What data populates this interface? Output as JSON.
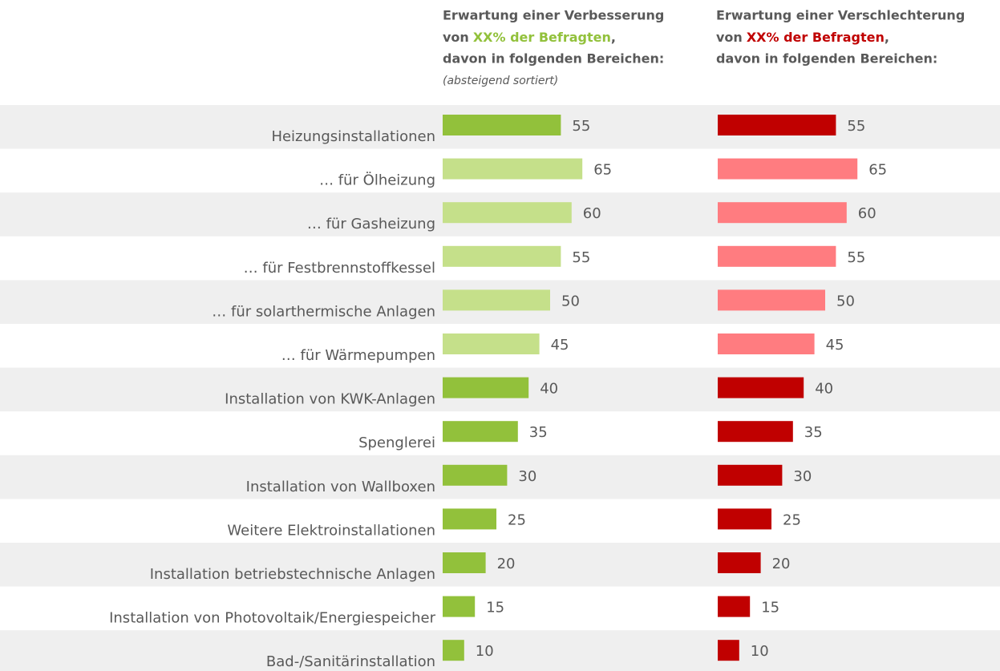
{
  "chart_data": {
    "type": "bar",
    "orientation": "horizontal",
    "categories": [
      "Heizungsinstallationen",
      "… für Ölheizung",
      "… für Gasheizung",
      "… für Festbrennstoffkessel",
      "… für solarthermische Anlagen",
      "… für Wärmepumpen",
      "Installation von KWK-Anlagen",
      "Spenglerei",
      "Installation von Wallboxen",
      "Weitere Elektroinstallationen",
      "Installation betriebstechnische Anlagen",
      "Installation von Photovoltaik/Energiespeicher",
      "Bad-/Sanitärinstallation"
    ],
    "series": [
      {
        "header": {
          "line1": "Erwartung einer Verbesserung",
          "line2_prefix": "von",
          "line2_highlight": "XX% der Befragten",
          "line2_suffix": ",",
          "line3": "davon in folgenden Bereichen:",
          "note": "(absteigend sortiert)",
          "accent": "#92c13b"
        },
        "values": [
          55,
          65,
          60,
          55,
          50,
          45,
          40,
          35,
          30,
          25,
          20,
          15,
          10
        ],
        "colors": [
          "#92c13b",
          "#c5e08a",
          "#c5e08a",
          "#c5e08a",
          "#c5e08a",
          "#c5e08a",
          "#92c13b",
          "#92c13b",
          "#92c13b",
          "#92c13b",
          "#92c13b",
          "#92c13b",
          "#92c13b"
        ]
      },
      {
        "header": {
          "line1": "Erwartung einer Verschlechterung",
          "line2_prefix": "von",
          "line2_highlight": "XX% der Befragten",
          "line2_suffix": ",",
          "line3": "davon in folgenden Bereichen:",
          "accent": "#c00000"
        },
        "values": [
          55,
          65,
          60,
          55,
          50,
          45,
          40,
          35,
          30,
          25,
          20,
          15,
          10
        ],
        "colors": [
          "#c00000",
          "#ff7c80",
          "#ff7c80",
          "#ff7c80",
          "#ff7c80",
          "#ff7c80",
          "#c00000",
          "#c00000",
          "#c00000",
          "#c00000",
          "#c00000",
          "#c00000",
          "#c00000"
        ]
      }
    ],
    "row_shading": "#efefef"
  }
}
